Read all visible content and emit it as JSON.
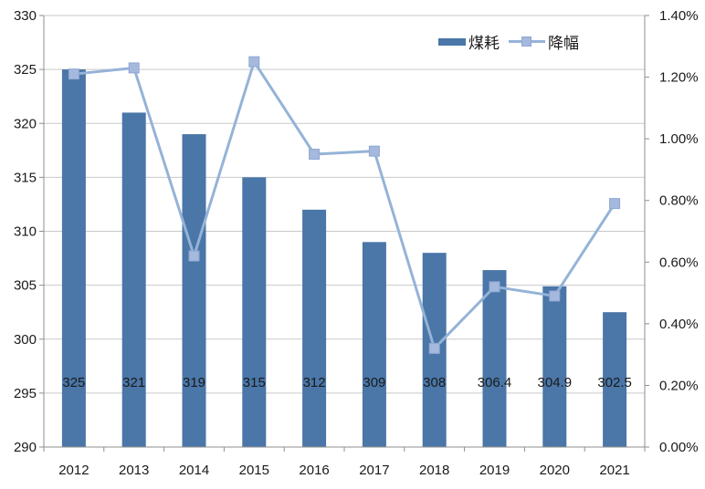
{
  "chart_data": {
    "type": "bar+line",
    "categories": [
      "2012",
      "2013",
      "2014",
      "2015",
      "2016",
      "2017",
      "2018",
      "2019",
      "2020",
      "2021"
    ],
    "series": [
      {
        "name": "煤耗",
        "type": "bar",
        "axis": "left",
        "color": "#4a76a8",
        "values": [
          325,
          321,
          319,
          315,
          312,
          309,
          308,
          306.4,
          304.9,
          302.5
        ],
        "labels": [
          "325",
          "321",
          "319",
          "315",
          "312",
          "309",
          "308",
          "306.4",
          "304.9",
          "302.5"
        ]
      },
      {
        "name": "降幅",
        "type": "line",
        "axis": "right",
        "color": "#95b3d7",
        "marker": "square",
        "values_percent": [
          1.21,
          1.23,
          0.62,
          1.25,
          0.95,
          0.96,
          0.32,
          0.52,
          0.49,
          0.79
        ]
      }
    ],
    "left_axis": {
      "min": 290,
      "max": 330,
      "step": 5,
      "tick_values": [
        330,
        325,
        320,
        315,
        310,
        305,
        300,
        295,
        290
      ],
      "tick_labels": [
        "330",
        "325",
        "320",
        "315",
        "310",
        "305",
        "300",
        "295",
        "290"
      ]
    },
    "right_axis": {
      "min": 0,
      "max": 1.4,
      "step": 0.2,
      "tick_values": [
        1.4,
        1.2,
        1.0,
        0.8,
        0.6,
        0.4,
        0.2,
        0.0
      ],
      "tick_labels": [
        "1.40%",
        "1.20%",
        "1.00%",
        "0.80%",
        "0.60%",
        "0.40%",
        "0.20%",
        "0.00%"
      ]
    },
    "legend": {
      "position": "top",
      "entries": [
        "煤耗",
        "降幅"
      ]
    },
    "grid": true,
    "colors": {
      "bar": "#4a76a8",
      "line": "#95b3d7",
      "marker_fill": "#a5b8dd",
      "marker_stroke": "#8ea8d2",
      "gridline": "#c9c9c9",
      "axis": "#8f8f8f",
      "text": "#1a1a1a",
      "background": "#ffffff"
    }
  }
}
